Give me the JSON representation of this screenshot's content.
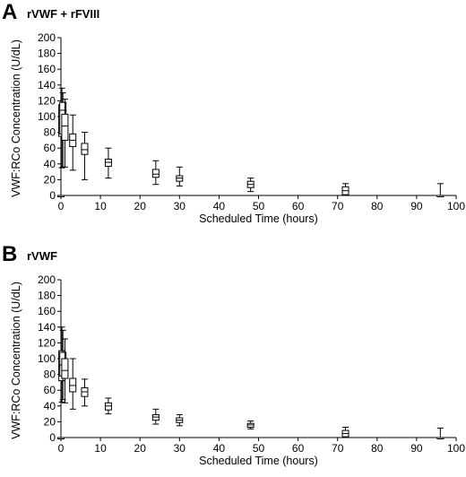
{
  "chart_data": [
    {
      "type": "box",
      "panel_letter": "A",
      "title": "rVWF + rFVIII",
      "xlabel": "Scheduled Time (hours)",
      "ylabel": "VWF:RCo Concentration (U/dL)",
      "xlim": [
        0,
        100
      ],
      "ylim": [
        0,
        200
      ],
      "xticks": [
        0,
        10,
        20,
        30,
        40,
        50,
        60,
        70,
        80,
        90,
        100
      ],
      "yticks": [
        0,
        20,
        40,
        60,
        80,
        100,
        120,
        140,
        160,
        180,
        200
      ],
      "boxes": [
        {
          "x": 0,
          "min": 0,
          "q1": 0,
          "median": 0,
          "q3": 0,
          "max": 0
        },
        {
          "x": 0.25,
          "min": 35,
          "q1": 75,
          "median": 100,
          "q3": 115,
          "max": 136
        },
        {
          "x": 0.5,
          "min": 36,
          "q1": 78,
          "median": 108,
          "q3": 118,
          "max": 130
        },
        {
          "x": 1,
          "min": 36,
          "q1": 70,
          "median": 88,
          "q3": 103,
          "max": 122
        },
        {
          "x": 3,
          "min": 32,
          "q1": 62,
          "median": 70,
          "q3": 78,
          "max": 102
        },
        {
          "x": 6,
          "min": 20,
          "q1": 52,
          "median": 58,
          "q3": 66,
          "max": 80
        },
        {
          "x": 12,
          "min": 22,
          "q1": 37,
          "median": 42,
          "q3": 46,
          "max": 60
        },
        {
          "x": 24,
          "min": 14,
          "q1": 23,
          "median": 27,
          "q3": 33,
          "max": 44
        },
        {
          "x": 30,
          "min": 12,
          "q1": 18,
          "median": 22,
          "q3": 25,
          "max": 36
        },
        {
          "x": 48,
          "min": 5,
          "q1": 10,
          "median": 14,
          "q3": 18,
          "max": 22
        },
        {
          "x": 72,
          "min": 0,
          "q1": 1,
          "median": 6,
          "q3": 11,
          "max": 15
        },
        {
          "x": 96,
          "min": 0,
          "q1": 0,
          "median": 0,
          "q3": 0,
          "max": 15
        }
      ]
    },
    {
      "type": "box",
      "panel_letter": "B",
      "title": "rVWF",
      "xlabel": "Scheduled Time (hours)",
      "ylabel": "VWF:RCo Concentration (U/dL)",
      "xlim": [
        0,
        100
      ],
      "ylim": [
        0,
        200
      ],
      "xticks": [
        0,
        10,
        20,
        30,
        40,
        50,
        60,
        70,
        80,
        90,
        100
      ],
      "yticks": [
        0,
        20,
        40,
        60,
        80,
        100,
        120,
        140,
        160,
        180,
        200
      ],
      "boxes": [
        {
          "x": 0,
          "min": 0,
          "q1": 0,
          "median": 0,
          "q3": 0,
          "max": 0
        },
        {
          "x": 0.25,
          "min": 45,
          "q1": 72,
          "median": 90,
          "q3": 110,
          "max": 140
        },
        {
          "x": 0.5,
          "min": 48,
          "q1": 78,
          "median": 92,
          "q3": 108,
          "max": 136
        },
        {
          "x": 1,
          "min": 44,
          "q1": 75,
          "median": 85,
          "q3": 100,
          "max": 125
        },
        {
          "x": 3,
          "min": 36,
          "q1": 58,
          "median": 66,
          "q3": 75,
          "max": 100
        },
        {
          "x": 6,
          "min": 40,
          "q1": 52,
          "median": 58,
          "q3": 63,
          "max": 74
        },
        {
          "x": 12,
          "min": 30,
          "q1": 35,
          "median": 40,
          "q3": 44,
          "max": 50
        },
        {
          "x": 24,
          "min": 17,
          "q1": 22,
          "median": 26,
          "q3": 29,
          "max": 36
        },
        {
          "x": 30,
          "min": 15,
          "q1": 19,
          "median": 22,
          "q3": 25,
          "max": 29
        },
        {
          "x": 48,
          "min": 11,
          "q1": 13,
          "median": 16,
          "q3": 18,
          "max": 21
        },
        {
          "x": 72,
          "min": 0,
          "q1": 1,
          "median": 5,
          "q3": 9,
          "max": 13
        },
        {
          "x": 96,
          "min": 0,
          "q1": 0,
          "median": 0,
          "q3": 0,
          "max": 12
        }
      ]
    }
  ]
}
